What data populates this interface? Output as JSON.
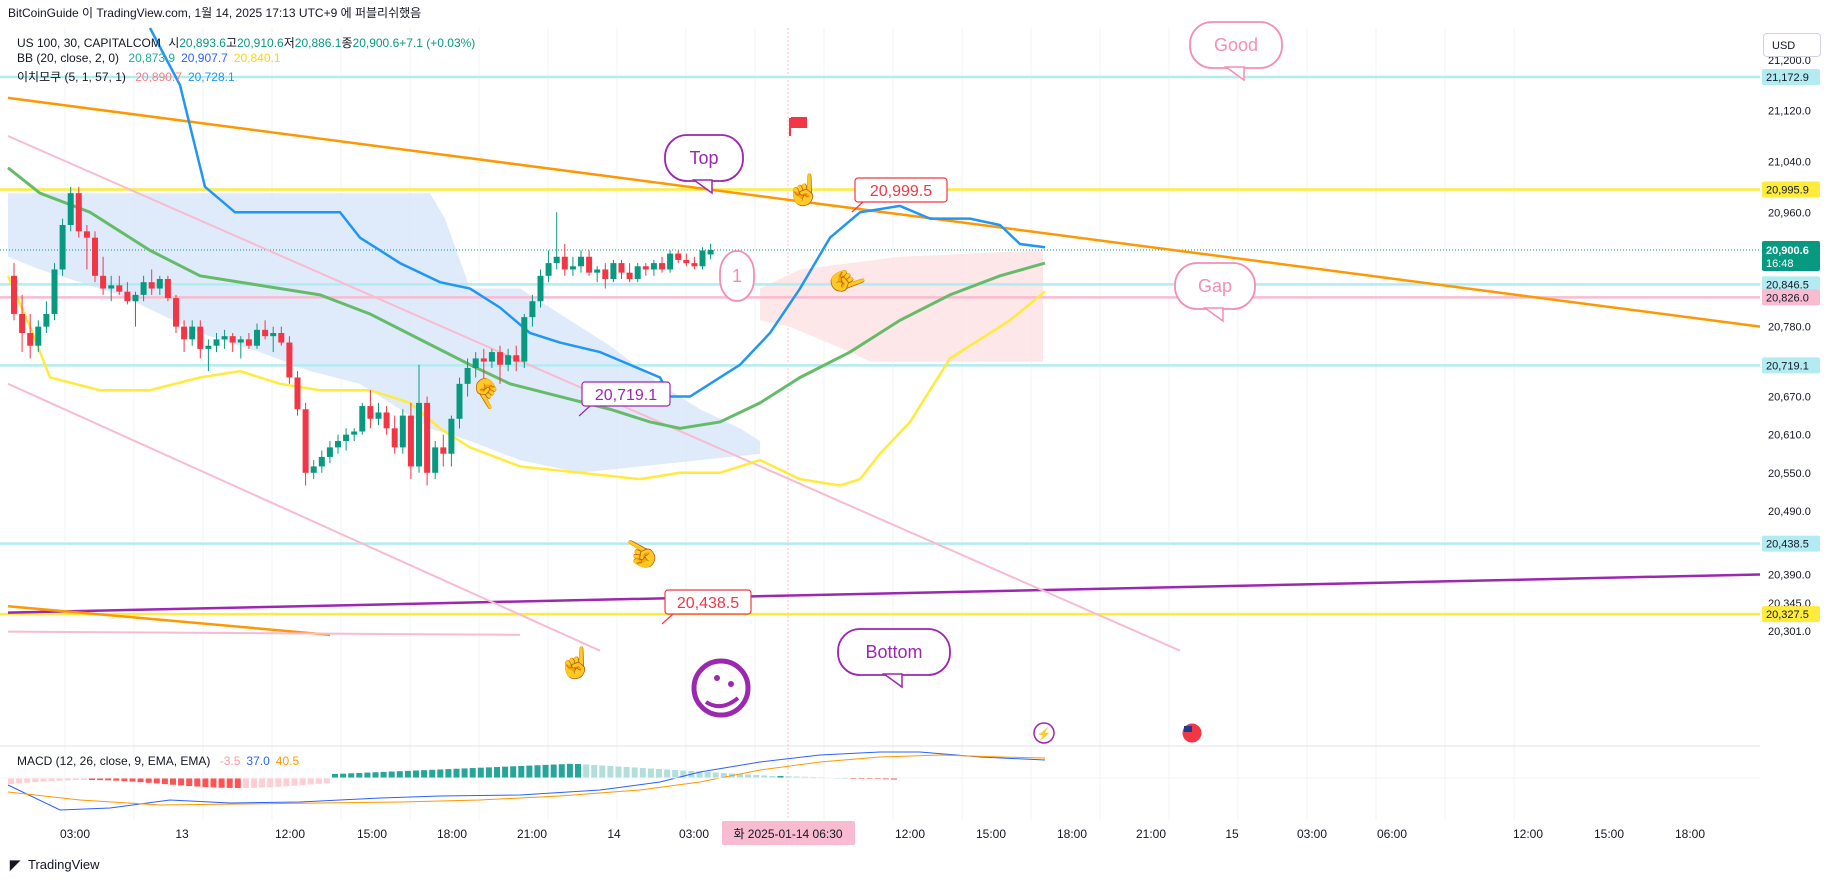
{
  "header": {
    "publish_line": "BitCoinGuide 이 TradingView.com, 1월 14, 2025 17:13 UTC+9 에 퍼블리쉬했음"
  },
  "legend": {
    "symbol": "US 100, 30, CAPITALCOM",
    "ohlc": [
      {
        "label": "시",
        "value": "20,893.6"
      },
      {
        "label": "고",
        "value": "20,910.6"
      },
      {
        "label": "저",
        "value": "20,886.1"
      },
      {
        "label": "종",
        "value": "20,900.6"
      },
      {
        "label": "",
        "value": "+7.1 (+0.03%)"
      }
    ],
    "bb": {
      "label": "BB (20, close, 2, 0)",
      "values": [
        "20,873.9",
        "20,907.7",
        "20,840.1"
      ],
      "colors": [
        "#22ab94",
        "#2962ff",
        "#ffd600"
      ]
    },
    "ichimoku": {
      "label": "이치모쿠 (5, 1, 57, 1)",
      "values": [
        "20,890.7",
        "20,728.1"
      ],
      "colors": [
        "#f77c80",
        "#2196f3"
      ]
    },
    "macd": {
      "label": "MACD (12, 26, close, 9, EMA, EMA)",
      "values": [
        "-3.5",
        "37.0",
        "40.5"
      ],
      "colors": [
        "#ff9aa6",
        "#2962ff",
        "#ff9800"
      ]
    }
  },
  "currency_button": "USD",
  "footer_logo": "TradingView",
  "colors": {
    "up": "#089981",
    "down": "#f23645",
    "orange": "#ff9800",
    "purple": "#9c27b0",
    "pink": "#f8bbd0",
    "cyan": "#b2ebf2",
    "yellow": "#ffeb3b",
    "bb_mid": "#66bb6a",
    "blue": "#2196f3"
  },
  "chart_data": {
    "type": "candlestick",
    "symbol": "US 100",
    "interval": "30",
    "price_axis": {
      "ticks": [
        "21,200.0",
        "21,120.0",
        "21,040.0",
        "20,960.0",
        "20,780.0",
        "20,720.0",
        "20,670.0",
        "20,610.0",
        "20,550.0",
        "20,490.0",
        "20,390.0",
        "20,345.0",
        "20,301.0"
      ],
      "ylim": [
        20290,
        21250
      ]
    },
    "price_labels": [
      {
        "text": "21,172.9",
        "price": 21172.9,
        "color": "#b2ebf2",
        "text_color": "#131722"
      },
      {
        "text": "20,995.9",
        "price": 20995.9,
        "color": "#ffeb3b",
        "text_color": "#131722"
      },
      {
        "text": "20,846.5",
        "price": 20846.5,
        "color": "#b2ebf2",
        "text_color": "#131722"
      },
      {
        "text": "20,826.0",
        "price": 20826.0,
        "color": "#f8bbd0",
        "text_color": "#131722"
      },
      {
        "text": "20,719.1",
        "price": 20719.1,
        "color": "#b2ebf2",
        "text_color": "#131722"
      },
      {
        "text": "20,438.5",
        "price": 20438.5,
        "color": "#b2ebf2",
        "text_color": "#131722"
      },
      {
        "text": "20,327.5",
        "price": 20327.5,
        "color": "#ffeb3b",
        "text_color": "#131722"
      }
    ],
    "last_price": {
      "text": "20,900.6",
      "countdown": "16:48",
      "price": 20900.6
    },
    "time_axis": {
      "labels": [
        "03:00",
        "13",
        "12:00",
        "15:00",
        "18:00",
        "21:00",
        "14",
        "03:00",
        "06:30",
        "12:00",
        "15:00",
        "18:00",
        "21:00",
        "15",
        "03:00",
        "06:00",
        "12:00",
        "15:00",
        "18:00"
      ],
      "hover_label": "화 2025-01-14  06:30"
    },
    "horizontal_levels": [
      {
        "price": 21172.9,
        "color": "#b2ebf2"
      },
      {
        "price": 20995.9,
        "color": "#ffeb3b"
      },
      {
        "price": 20846.5,
        "color": "#b2ebf2"
      },
      {
        "price": 20826.0,
        "color": "#f8bbd0"
      },
      {
        "price": 20719.1,
        "color": "#b2ebf2"
      },
      {
        "price": 20438.5,
        "color": "#b2ebf2"
      },
      {
        "price": 20327.5,
        "color": "#ffeb3b"
      }
    ],
    "annotations": {
      "callouts": [
        {
          "text": "Good",
          "style": "pink"
        },
        {
          "text": "Top",
          "style": "purple"
        },
        {
          "text": "Gap",
          "style": "pink"
        },
        {
          "text": "Bottom",
          "style": "purple"
        },
        {
          "text": "1",
          "style": "pink"
        }
      ],
      "price_tags": [
        {
          "text": "20,999.5",
          "color": "#f23645"
        },
        {
          "text": "20,719.1",
          "color": "#9c27b0"
        },
        {
          "text": "20,438.5",
          "color": "#f23645"
        }
      ],
      "icons": [
        "flag-icon",
        "hand-icon",
        "emoji-icon",
        "lightning-icon",
        "us-flag-icon"
      ]
    },
    "candles": [
      {
        "o": 20860,
        "h": 20880,
        "l": 20790,
        "c": 20800
      },
      {
        "o": 20800,
        "h": 20830,
        "l": 20740,
        "c": 20770
      },
      {
        "o": 20770,
        "h": 20800,
        "l": 20730,
        "c": 20750
      },
      {
        "o": 20750,
        "h": 20790,
        "l": 20740,
        "c": 20780
      },
      {
        "o": 20780,
        "h": 20820,
        "l": 20770,
        "c": 20800
      },
      {
        "o": 20800,
        "h": 20880,
        "l": 20790,
        "c": 20870
      },
      {
        "o": 20870,
        "h": 20950,
        "l": 20860,
        "c": 20940
      },
      {
        "o": 20940,
        "h": 21000,
        "l": 20930,
        "c": 20990
      },
      {
        "o": 20990,
        "h": 21000,
        "l": 20920,
        "c": 20930
      },
      {
        "o": 20930,
        "h": 20940,
        "l": 20870,
        "c": 20920
      },
      {
        "o": 20920,
        "h": 20930,
        "l": 20850,
        "c": 20860
      },
      {
        "o": 20860,
        "h": 20890,
        "l": 20830,
        "c": 20840
      },
      {
        "o": 20840,
        "h": 20860,
        "l": 20820,
        "c": 20845
      },
      {
        "o": 20845,
        "h": 20860,
        "l": 20830,
        "c": 20835
      },
      {
        "o": 20835,
        "h": 20850,
        "l": 20815,
        "c": 20820
      },
      {
        "o": 20820,
        "h": 20835,
        "l": 20780,
        "c": 20830
      },
      {
        "o": 20830,
        "h": 20860,
        "l": 20820,
        "c": 20850
      },
      {
        "o": 20850,
        "h": 20870,
        "l": 20830,
        "c": 20840
      },
      {
        "o": 20840,
        "h": 20860,
        "l": 20830,
        "c": 20855
      },
      {
        "o": 20855,
        "h": 20860,
        "l": 20820,
        "c": 20825
      },
      {
        "o": 20825,
        "h": 20830,
        "l": 20770,
        "c": 20780
      },
      {
        "o": 20780,
        "h": 20790,
        "l": 20740,
        "c": 20760
      },
      {
        "o": 20760,
        "h": 20790,
        "l": 20750,
        "c": 20780
      },
      {
        "o": 20780,
        "h": 20790,
        "l": 20730,
        "c": 20745
      },
      {
        "o": 20745,
        "h": 20760,
        "l": 20710,
        "c": 20750
      },
      {
        "o": 20750,
        "h": 20770,
        "l": 20740,
        "c": 20760
      },
      {
        "o": 20760,
        "h": 20775,
        "l": 20745,
        "c": 20765
      },
      {
        "o": 20765,
        "h": 20770,
        "l": 20740,
        "c": 20755
      },
      {
        "o": 20755,
        "h": 20765,
        "l": 20730,
        "c": 20760
      },
      {
        "o": 20760,
        "h": 20770,
        "l": 20745,
        "c": 20750
      },
      {
        "o": 20750,
        "h": 20785,
        "l": 20745,
        "c": 20775
      },
      {
        "o": 20775,
        "h": 20790,
        "l": 20760,
        "c": 20765
      },
      {
        "o": 20765,
        "h": 20780,
        "l": 20740,
        "c": 20770
      },
      {
        "o": 20770,
        "h": 20780,
        "l": 20750,
        "c": 20755
      },
      {
        "o": 20755,
        "h": 20765,
        "l": 20690,
        "c": 20700
      },
      {
        "o": 20700,
        "h": 20710,
        "l": 20640,
        "c": 20650
      },
      {
        "o": 20650,
        "h": 20660,
        "l": 20530,
        "c": 20550
      },
      {
        "o": 20550,
        "h": 20570,
        "l": 20540,
        "c": 20560
      },
      {
        "o": 20560,
        "h": 20585,
        "l": 20550,
        "c": 20575
      },
      {
        "o": 20575,
        "h": 20600,
        "l": 20565,
        "c": 20590
      },
      {
        "o": 20590,
        "h": 20610,
        "l": 20580,
        "c": 20600
      },
      {
        "o": 20600,
        "h": 20620,
        "l": 20585,
        "c": 20610
      },
      {
        "o": 20610,
        "h": 20620,
        "l": 20600,
        "c": 20615
      },
      {
        "o": 20615,
        "h": 20660,
        "l": 20610,
        "c": 20655
      },
      {
        "o": 20655,
        "h": 20680,
        "l": 20620,
        "c": 20635
      },
      {
        "o": 20635,
        "h": 20660,
        "l": 20625,
        "c": 20645
      },
      {
        "o": 20645,
        "h": 20655,
        "l": 20610,
        "c": 20620
      },
      {
        "o": 20620,
        "h": 20640,
        "l": 20580,
        "c": 20590
      },
      {
        "o": 20590,
        "h": 20650,
        "l": 20580,
        "c": 20640
      },
      {
        "o": 20640,
        "h": 20660,
        "l": 20540,
        "c": 20560
      },
      {
        "o": 20560,
        "h": 20720,
        "l": 20550,
        "c": 20660
      },
      {
        "o": 20660,
        "h": 20670,
        "l": 20530,
        "c": 20550
      },
      {
        "o": 20550,
        "h": 20600,
        "l": 20540,
        "c": 20590
      },
      {
        "o": 20590,
        "h": 20610,
        "l": 20560,
        "c": 20580
      },
      {
        "o": 20580,
        "h": 20640,
        "l": 20560,
        "c": 20635
      },
      {
        "o": 20635,
        "h": 20700,
        "l": 20620,
        "c": 20690
      },
      {
        "o": 20690,
        "h": 20730,
        "l": 20670,
        "c": 20715
      },
      {
        "o": 20715,
        "h": 20740,
        "l": 20700,
        "c": 20730
      },
      {
        "o": 20730,
        "h": 20745,
        "l": 20690,
        "c": 20725
      },
      {
        "o": 20725,
        "h": 20745,
        "l": 20715,
        "c": 20740
      },
      {
        "o": 20740,
        "h": 20750,
        "l": 20690,
        "c": 20720
      },
      {
        "o": 20720,
        "h": 20745,
        "l": 20710,
        "c": 20735
      },
      {
        "o": 20735,
        "h": 20750,
        "l": 20710,
        "c": 20725
      },
      {
        "o": 20725,
        "h": 20800,
        "l": 20715,
        "c": 20795
      },
      {
        "o": 20795,
        "h": 20830,
        "l": 20780,
        "c": 20820
      },
      {
        "o": 20820,
        "h": 20870,
        "l": 20810,
        "c": 20860
      },
      {
        "o": 20860,
        "h": 20900,
        "l": 20850,
        "c": 20880
      },
      {
        "o": 20880,
        "h": 20960,
        "l": 20870,
        "c": 20890
      },
      {
        "o": 20890,
        "h": 20910,
        "l": 20860,
        "c": 20870
      },
      {
        "o": 20870,
        "h": 20890,
        "l": 20860,
        "c": 20875
      },
      {
        "o": 20875,
        "h": 20900,
        "l": 20865,
        "c": 20890
      },
      {
        "o": 20890,
        "h": 20900,
        "l": 20860,
        "c": 20865
      },
      {
        "o": 20865,
        "h": 20875,
        "l": 20850,
        "c": 20870
      },
      {
        "o": 20870,
        "h": 20880,
        "l": 20840,
        "c": 20855
      },
      {
        "o": 20855,
        "h": 20885,
        "l": 20850,
        "c": 20880
      },
      {
        "o": 20880,
        "h": 20885,
        "l": 20855,
        "c": 20865
      },
      {
        "o": 20865,
        "h": 20880,
        "l": 20850,
        "c": 20855
      },
      {
        "o": 20855,
        "h": 20880,
        "l": 20850,
        "c": 20875
      },
      {
        "o": 20875,
        "h": 20880,
        "l": 20860,
        "c": 20870
      },
      {
        "o": 20870,
        "h": 20885,
        "l": 20860,
        "c": 20880
      },
      {
        "o": 20880,
        "h": 20890,
        "l": 20865,
        "c": 20870
      },
      {
        "o": 20870,
        "h": 20900,
        "l": 20865,
        "c": 20895
      },
      {
        "o": 20895,
        "h": 20900,
        "l": 20880,
        "c": 20885
      },
      {
        "o": 20885,
        "h": 20895,
        "l": 20875,
        "c": 20880
      },
      {
        "o": 20880,
        "h": 20890,
        "l": 20870,
        "c": 20875
      },
      {
        "o": 20875,
        "h": 20905,
        "l": 20870,
        "c": 20900
      },
      {
        "o": 20893.6,
        "h": 20910.6,
        "l": 20886.1,
        "c": 20900.6
      }
    ]
  }
}
